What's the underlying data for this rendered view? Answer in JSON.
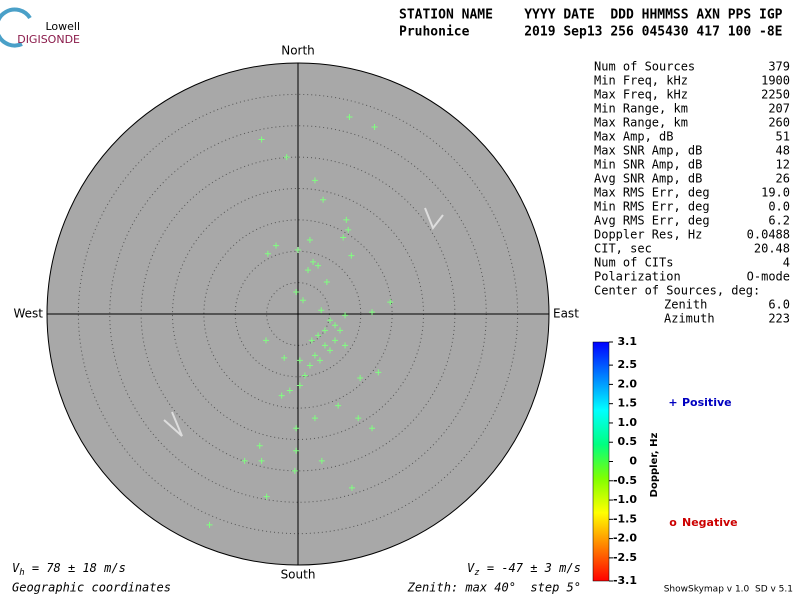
{
  "logo": {
    "top": "Lowell",
    "bottom": "DIGISONDE"
  },
  "header": {
    "line1": "STATION NAME    YYYY DATE  DDD HHMMSS AXN PPS IGP",
    "line2": "Pruhonice       2019 Sep13 256 045430 417 100 -8E"
  },
  "stats": {
    "rows": [
      [
        "Num of Sources",
        "379"
      ],
      [
        "Min Freq, kHz",
        "1900"
      ],
      [
        "Max Freq, kHz",
        "2250"
      ],
      [
        "Min Range, km",
        "207"
      ],
      [
        "Max Range, km",
        "260"
      ],
      [
        "Max Amp, dB",
        "51"
      ],
      [
        "Max SNR Amp, dB",
        "48"
      ],
      [
        "Min SNR Amp, dB",
        "12"
      ],
      [
        "Avg SNR Amp, dB",
        "26"
      ],
      [
        "Max RMS Err, deg",
        "19.0"
      ],
      [
        "Min RMS Err, deg",
        "0.0"
      ],
      [
        "Avg RMS Err, deg",
        "6.2"
      ],
      [
        "Doppler Res, Hz",
        "0.0488"
      ],
      [
        "CIT, sec",
        "20.48"
      ],
      [
        "Num of CITs",
        "4"
      ],
      [
        "Polarization",
        "O-mode"
      ],
      [
        "Center of Sources, deg:",
        null
      ],
      [
        "Zenith",
        "6.0"
      ],
      [
        "Azimuth",
        "223"
      ]
    ]
  },
  "chart_data": {
    "type": "skymap",
    "directions": {
      "north": "North",
      "south": "South",
      "east": "East",
      "west": "West"
    },
    "rmax": 40,
    "rstep": 5,
    "point_color": "#80ff80",
    "x": [
      8.2,
      12.2,
      -5.8,
      -1.8,
      2.7,
      4.0,
      7.7,
      8.0,
      7.2,
      1.9,
      -3.5,
      -4.8,
      0,
      2.4,
      3.2,
      8.5,
      1.6,
      4.6,
      -0.3,
      0.8,
      14.7,
      3.7,
      5.1,
      6.7,
      7.5,
      5.9,
      4.3,
      2.7,
      1.9,
      1.1,
      0.3,
      -1.3,
      -2.6,
      -5.1,
      -2.2,
      11.8,
      12.8,
      9.9,
      6.4,
      2.7,
      9.6,
      11.8,
      -0.3,
      -6.1,
      -5.8,
      -8.5,
      -0.3,
      3.8,
      -0.5,
      8.6,
      -5.0,
      -14.1,
      3.5,
      5.1,
      3.2,
      5.9,
      4.3,
      2.2,
      7.5,
      0.3
    ],
    "y": [
      31.4,
      29.8,
      27.8,
      25.0,
      21.3,
      18.2,
      15.0,
      13.4,
      12.2,
      11.8,
      10.9,
      9.6,
      10.2,
      8.3,
      7.7,
      9.3,
      7.0,
      5.1,
      3.5,
      2.2,
      1.9,
      0.6,
      -1.0,
      -2.6,
      -0.2,
      -4.2,
      -5.0,
      -6.6,
      -8.2,
      -9.8,
      -11.4,
      -12.2,
      -13.0,
      -4.2,
      -7.0,
      0.3,
      -9.3,
      -10.2,
      -14.6,
      -16.6,
      -16.6,
      -18.2,
      -18.2,
      -21.0,
      -23.4,
      -23.4,
      -21.8,
      -23.4,
      -25.0,
      -27.7,
      -29.1,
      -33.6,
      -7.4,
      -5.8,
      -3.4,
      -1.8,
      -2.6,
      -4.2,
      -5.0,
      -7.4
    ],
    "colorbar": {
      "label": "Doppler, Hz",
      "clim": [
        -3.1,
        3.1
      ],
      "colors": [
        "#ff0000",
        "#ff8000",
        "#ffff00",
        "#80ff00",
        "#00ff80",
        "#00ffff",
        "#0080ff",
        "#0000ff"
      ],
      "ticks": [
        3.1,
        2.5,
        {
          "value": 2,
          "label": "2.0"
        },
        1.5,
        {
          "value": 1,
          "label": "1.0"
        },
        0.5,
        0,
        -0.5,
        {
          "value": -1,
          "label": "-1.0"
        },
        -1.5,
        {
          "value": -2,
          "label": "-2.0"
        },
        -2.5,
        -3.1
      ]
    },
    "legend": [
      {
        "symbol": "+",
        "label": "Positive",
        "color": "#0000c0"
      },
      {
        "symbol": "o",
        "label": "Negative",
        "color": "#cc0000"
      }
    ]
  },
  "footer": {
    "vh": {
      "symbol": "V",
      "sub": "h",
      "text": " = 78 ± 18 m/s"
    },
    "vz": {
      "symbol": "V",
      "sub": "z",
      "text": " = -47 ± 3 m/s"
    },
    "coords": "Geographic coordinates",
    "zenith": "Zenith: max 40°  step 5°",
    "version": "ShowSkymap v 1.0  SD v 5.1"
  }
}
